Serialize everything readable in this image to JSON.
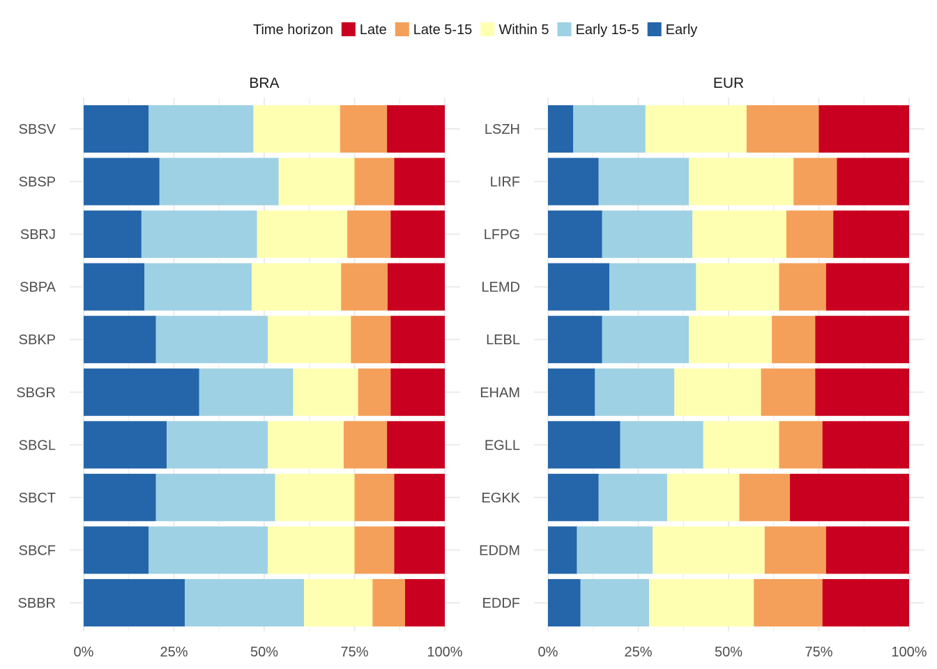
{
  "chart_data": {
    "type": "bar",
    "orientation": "horizontal",
    "stacked": "percent",
    "legend": {
      "title": "Time horizon",
      "placement": "top",
      "entries": [
        {
          "name": "Late",
          "color": "#CA0020"
        },
        {
          "name": "Late 5-15",
          "color": "#F4A05A"
        },
        {
          "name": "Within 5",
          "color": "#FFFFB2"
        },
        {
          "name": "Early 15-5",
          "color": "#9ED1E3"
        },
        {
          "name": "Early",
          "color": "#2566AA"
        }
      ]
    },
    "stack_order": [
      "Early",
      "Early 15-5",
      "Within 5",
      "Late 5-15",
      "Late"
    ],
    "xlim": [
      0,
      1
    ],
    "x_ticks": [
      "0%",
      "25%",
      "50%",
      "75%",
      "100%"
    ],
    "grid": true,
    "panels": [
      {
        "title": "BRA",
        "categories": [
          "SBSV",
          "SBSP",
          "SBRJ",
          "SBPA",
          "SBKP",
          "SBGR",
          "SBGL",
          "SBCT",
          "SBCF",
          "SBBR"
        ],
        "series": [
          {
            "name": "Early",
            "values": [
              0.18,
              0.21,
              0.16,
              0.17,
              0.2,
              0.32,
              0.23,
              0.2,
              0.18,
              0.28
            ]
          },
          {
            "name": "Early 15-5",
            "values": [
              0.29,
              0.33,
              0.32,
              0.3,
              0.31,
              0.26,
              0.28,
              0.33,
              0.33,
              0.33
            ]
          },
          {
            "name": "Within 5",
            "values": [
              0.24,
              0.21,
              0.25,
              0.25,
              0.23,
              0.18,
              0.21,
              0.22,
              0.24,
              0.19
            ]
          },
          {
            "name": "Late 5-15",
            "values": [
              0.13,
              0.11,
              0.12,
              0.13,
              0.11,
              0.09,
              0.12,
              0.11,
              0.11,
              0.09
            ]
          },
          {
            "name": "Late",
            "values": [
              0.16,
              0.14,
              0.15,
              0.16,
              0.15,
              0.15,
              0.16,
              0.14,
              0.14,
              0.11
            ]
          }
        ]
      },
      {
        "title": "EUR",
        "categories": [
          "LSZH",
          "LIRF",
          "LFPG",
          "LEMD",
          "LEBL",
          "EHAM",
          "EGLL",
          "EGKK",
          "EDDM",
          "EDDF"
        ],
        "series": [
          {
            "name": "Early",
            "values": [
              0.07,
              0.14,
              0.15,
              0.17,
              0.15,
              0.13,
              0.2,
              0.14,
              0.08,
              0.09
            ]
          },
          {
            "name": "Early 15-5",
            "values": [
              0.2,
              0.25,
              0.25,
              0.24,
              0.24,
              0.22,
              0.23,
              0.19,
              0.21,
              0.19
            ]
          },
          {
            "name": "Within 5",
            "values": [
              0.28,
              0.29,
              0.26,
              0.23,
              0.23,
              0.24,
              0.21,
              0.2,
              0.31,
              0.29
            ]
          },
          {
            "name": "Late 5-15",
            "values": [
              0.2,
              0.12,
              0.13,
              0.13,
              0.12,
              0.15,
              0.12,
              0.14,
              0.17,
              0.19
            ]
          },
          {
            "name": "Late",
            "values": [
              0.25,
              0.2,
              0.21,
              0.23,
              0.26,
              0.26,
              0.24,
              0.33,
              0.23,
              0.24
            ]
          }
        ]
      }
    ]
  }
}
